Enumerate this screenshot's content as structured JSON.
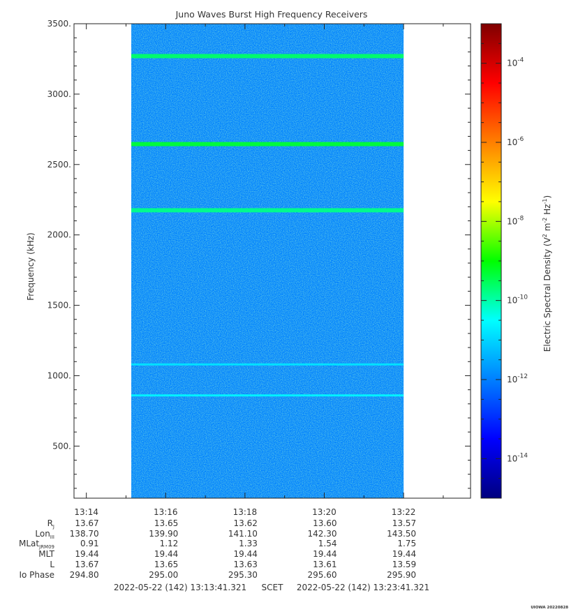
{
  "chart_data": {
    "type": "heatmap",
    "title": "Juno Waves Burst High Frequency Receivers",
    "ylabel": "Frequency (kHz)",
    "ylim": [
      130,
      3500
    ],
    "y_ticks": [
      500,
      1000,
      1500,
      2000,
      2500,
      3000,
      3500
    ],
    "y_tick_labels": [
      "500.",
      "1000.",
      "1500.",
      "2000.",
      "2500.",
      "3000.",
      "3500."
    ],
    "x_range": [
      "13:13:41.321",
      "13:23:41.321"
    ],
    "x_ticks": [
      "13:14",
      "13:16",
      "13:18",
      "13:20",
      "13:22"
    ],
    "data_time_range": [
      "13:15:08",
      "13:22:00"
    ],
    "background_level": "1e-12",
    "emission_lines": [
      {
        "freq_khz": 3270,
        "level": "1e-9.6"
      },
      {
        "freq_khz": 2645,
        "level": "1e-9.3"
      },
      {
        "freq_khz": 2175,
        "level": "1e-9.8"
      },
      {
        "freq_khz": 1080,
        "level": "1e-10.8"
      },
      {
        "freq_khz": 860,
        "level": "1e-10.6"
      }
    ],
    "colorbar": {
      "label": "Electric Spectral Density (V^2 m^-2 Hz^-1)",
      "log_min": -15,
      "log_max": -3,
      "tick_labels": [
        "-4",
        "-6",
        "-8",
        "-10",
        "-12",
        "-14"
      ],
      "tick_values": [
        -4,
        -6,
        -8,
        -10,
        -12,
        -14
      ]
    },
    "ephemeris": {
      "row_labels": [
        "Rj",
        "LonIII",
        "MLatJRM09",
        "MLT",
        "L",
        "Io Phase"
      ],
      "columns": [
        {
          "time": "13:14",
          "values": [
            "13.67",
            "138.70",
            "0.91",
            "19.44",
            "13.67",
            "294.80"
          ]
        },
        {
          "time": "13:16",
          "values": [
            "13.65",
            "139.90",
            "1.12",
            "19.44",
            "13.65",
            "295.00"
          ]
        },
        {
          "time": "13:18",
          "values": [
            "13.62",
            "141.10",
            "1.33",
            "19.44",
            "13.63",
            "295.30"
          ]
        },
        {
          "time": "13:20",
          "values": [
            "13.60",
            "142.30",
            "1.54",
            "19.44",
            "13.61",
            "295.60"
          ]
        },
        {
          "time": "13:22",
          "values": [
            "13.57",
            "143.50",
            "1.75",
            "19.44",
            "13.59",
            "295.90"
          ]
        }
      ]
    },
    "footer": {
      "start": "2022-05-22 (142) 13:13:41.321",
      "middle": "SCET",
      "end": "2022-05-22 (142) 13:23:41.321"
    },
    "stamp": "UIOWA 20220828"
  }
}
